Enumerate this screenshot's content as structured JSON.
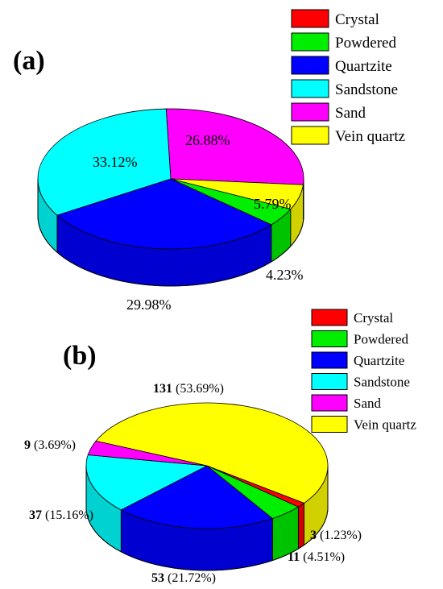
{
  "chart_data": [
    {
      "type": "pie",
      "panel_label": "(a)",
      "categories": [
        "Crystal",
        "Powdered",
        "Quartzite",
        "Sandstone",
        "Sand",
        "Vein quartz"
      ],
      "values": [
        0,
        4.23,
        29.98,
        33.12,
        26.88,
        5.79
      ],
      "colors": [
        "#ff0000",
        "#00ee00",
        "#0000ff",
        "#00ffff",
        "#ff00ff",
        "#ffff00"
      ],
      "value_labels": [
        "",
        "4.23%",
        "29.98%",
        "33.12%",
        "26.88%",
        "5.79%"
      ],
      "legend": {
        "position": "top-right"
      }
    },
    {
      "type": "pie",
      "panel_label": "(b)",
      "categories": [
        "Crystal",
        "Powdered",
        "Quartzite",
        "Sandstone",
        "Sand",
        "Vein quartz"
      ],
      "counts": [
        3,
        11,
        53,
        37,
        9,
        131
      ],
      "values": [
        1.23,
        4.51,
        21.72,
        15.16,
        3.69,
        53.69
      ],
      "colors": [
        "#ff0000",
        "#00ee00",
        "#0000ff",
        "#00ffff",
        "#ff00ff",
        "#ffff00"
      ],
      "count_labels": [
        "3",
        "11",
        "53",
        "37",
        "9",
        "131"
      ],
      "pct_labels": [
        "(1.23%)",
        "(4.51%)",
        "(21.72%)",
        "(15.16%)",
        "(3.69%)",
        "(53.69%)"
      ],
      "legend": {
        "position": "top-right"
      }
    }
  ]
}
